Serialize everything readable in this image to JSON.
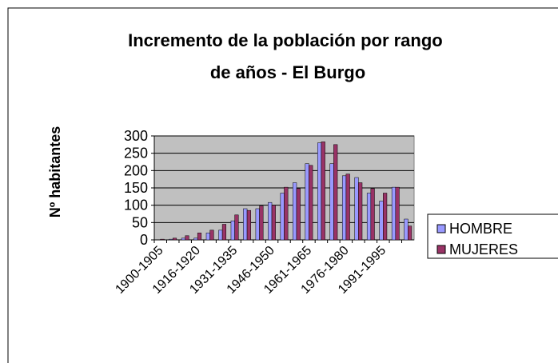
{
  "chart_data": {
    "type": "bar",
    "title": "Incremento de la población por rango de años - El Burgo",
    "y_label": "Nº habitantes",
    "categories": [
      "1900-1905",
      null,
      null,
      "1916-1920",
      null,
      null,
      "1931-1935",
      null,
      null,
      "1946-1950",
      null,
      null,
      "1961-1965",
      null,
      null,
      "1976-1980",
      null,
      null,
      "1991-1995",
      null,
      null
    ],
    "series": [
      {
        "name": "HOMBRE",
        "color": "#9999ff",
        "values": [
          0,
          2,
          5,
          5,
          20,
          28,
          55,
          90,
          90,
          108,
          135,
          165,
          220,
          280,
          220,
          185,
          180,
          135,
          112,
          152,
          60
        ]
      },
      {
        "name": "MUJERES",
        "color": "#993366",
        "values": [
          2,
          5,
          12,
          20,
          28,
          45,
          72,
          85,
          98,
          100,
          152,
          148,
          215,
          283,
          275,
          190,
          165,
          148,
          135,
          152,
          40
        ]
      }
    ],
    "ylim": [
      0,
      300
    ],
    "yticks": [
      0,
      50,
      100,
      150,
      200,
      250,
      300
    ],
    "grid": true,
    "legend": "right"
  }
}
